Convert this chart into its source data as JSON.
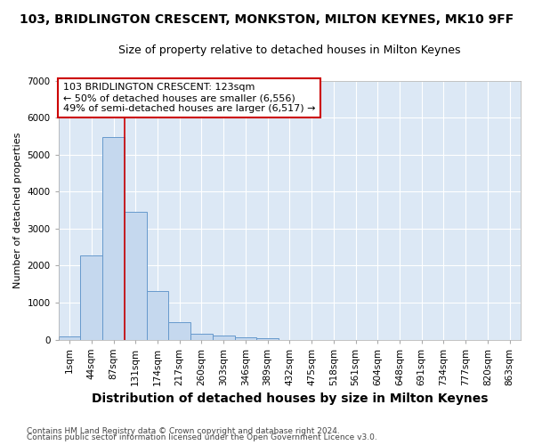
{
  "title": "103, BRIDLINGTON CRESCENT, MONKSTON, MILTON KEYNES, MK10 9FF",
  "subtitle": "Size of property relative to detached houses in Milton Keynes",
  "xlabel": "Distribution of detached houses by size in Milton Keynes",
  "ylabel": "Number of detached properties",
  "bar_labels": [
    "1sqm",
    "44sqm",
    "87sqm",
    "131sqm",
    "174sqm",
    "217sqm",
    "260sqm",
    "303sqm",
    "346sqm",
    "389sqm",
    "432sqm",
    "475sqm",
    "518sqm",
    "561sqm",
    "604sqm",
    "648sqm",
    "691sqm",
    "734sqm",
    "777sqm",
    "820sqm",
    "863sqm"
  ],
  "bar_values": [
    80,
    2280,
    5480,
    3450,
    1320,
    470,
    160,
    100,
    70,
    40,
    0,
    0,
    0,
    0,
    0,
    0,
    0,
    0,
    0,
    0,
    0
  ],
  "bar_color": "#c5d8ee",
  "bar_edge_color": "#6699cc",
  "vline_x": 2.5,
  "vline_color": "#cc0000",
  "annotation_text": "103 BRIDLINGTON CRESCENT: 123sqm\n← 50% of detached houses are smaller (6,556)\n49% of semi-detached houses are larger (6,517) →",
  "annotation_box_color": "#ffffff",
  "annotation_box_edge": "#cc0000",
  "ylim": [
    0,
    7000
  ],
  "yticks": [
    0,
    1000,
    2000,
    3000,
    4000,
    5000,
    6000,
    7000
  ],
  "footer_line1": "Contains HM Land Registry data © Crown copyright and database right 2024.",
  "footer_line2": "Contains public sector information licensed under the Open Government Licence v3.0.",
  "fig_background_color": "#ffffff",
  "plot_bg_color": "#dce8f5",
  "grid_color": "#ffffff",
  "title_fontsize": 10,
  "subtitle_fontsize": 9,
  "xlabel_fontsize": 10,
  "ylabel_fontsize": 8,
  "tick_fontsize": 7.5,
  "annotation_fontsize": 8
}
